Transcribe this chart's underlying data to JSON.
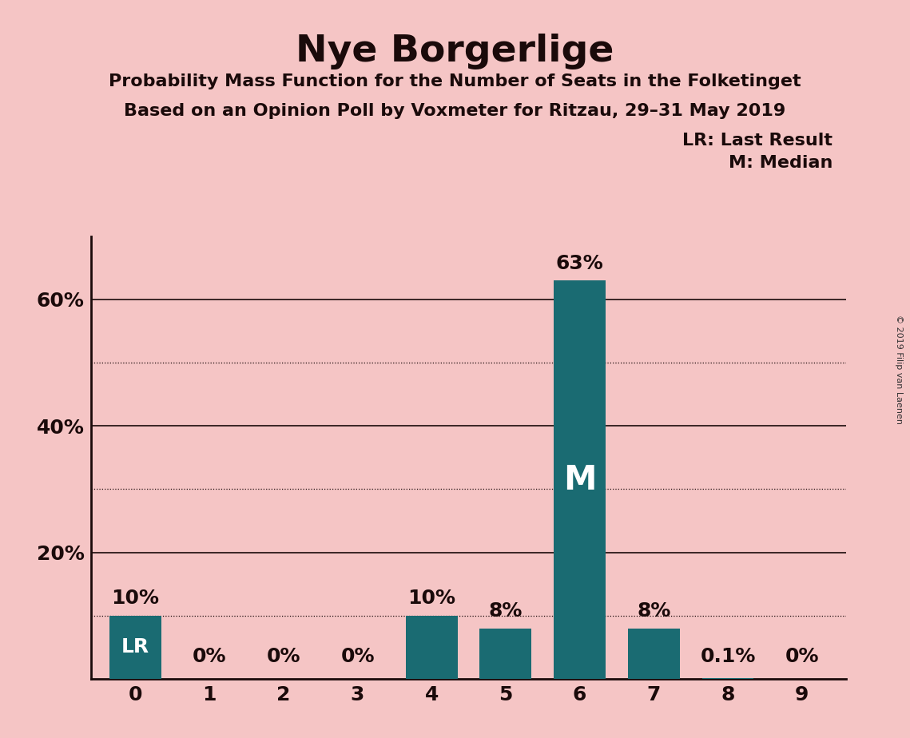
{
  "title": "Nye Borgerlige",
  "subtitle1": "Probability Mass Function for the Number of Seats in the Folketinget",
  "subtitle2": "Based on an Opinion Poll by Voxmeter for Ritzau, 29–31 May 2019",
  "copyright": "© 2019 Filip van Laenen",
  "categories": [
    0,
    1,
    2,
    3,
    4,
    5,
    6,
    7,
    8,
    9
  ],
  "values": [
    10,
    0,
    0,
    0,
    10,
    8,
    63,
    8,
    0.1,
    0
  ],
  "bar_color": "#1a6b72",
  "background_color": "#f5c5c5",
  "last_result_bar": 0,
  "median_bar": 6,
  "ylim": [
    0,
    70
  ],
  "yticks": [
    20,
    40,
    60
  ],
  "ytick_labels": [
    "20%",
    "40%",
    "60%"
  ],
  "dotted_grid": [
    10,
    30,
    50
  ],
  "solid_grid": [
    20,
    40,
    60
  ],
  "legend_lr": "LR: Last Result",
  "legend_m": "M: Median",
  "bar_labels": [
    "10%",
    "0%",
    "0%",
    "0%",
    "10%",
    "8%",
    "63%",
    "8%",
    "0.1%",
    "0%"
  ],
  "text_color": "#1a0a0a",
  "M_label_color": "#ffffff",
  "LR_label_color": "#ffffff",
  "copyright_color": "#333333"
}
